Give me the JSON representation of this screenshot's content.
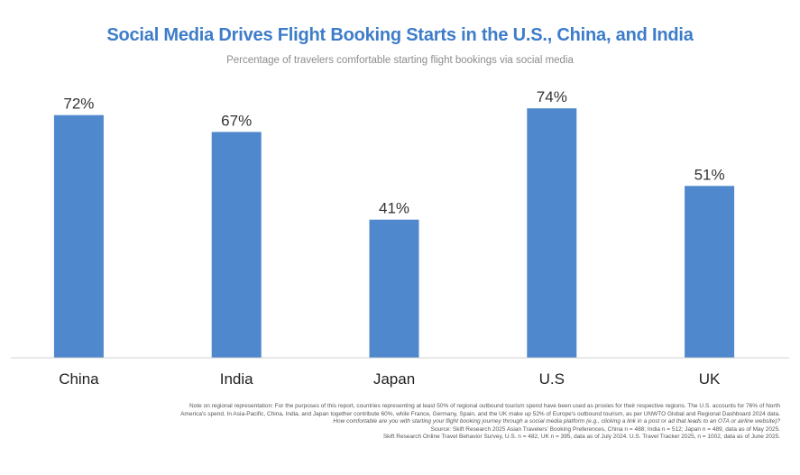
{
  "chart_data": {
    "type": "bar",
    "title": "Social Media Drives Flight Booking Starts in the U.S., China, and India",
    "subtitle": "Percentage of travelers comfortable starting flight bookings via social media",
    "categories": [
      "China",
      "India",
      "Japan",
      "U.S",
      "UK"
    ],
    "values": [
      72,
      67,
      41,
      74,
      51
    ],
    "data_labels": [
      "72%",
      "67%",
      "41%",
      "74%",
      "51%"
    ],
    "ylim": [
      0,
      100
    ],
    "grid": false,
    "legend": "none",
    "bar_color": "#4f88cc"
  },
  "notes": {
    "line1": "Note on regional representation: For the purposes of this report, countries representing at least 50% of regional outbound tourism spend have been used as proxies for their respective regions. The U.S. accounts for 76% of North",
    "line2": "America's spend. In Asia-Pacific, China, India, and Japan together contribute 60%, while France, Germany, Spain, and the UK make up 52% of Europe's outbound tourism, as per UNWTO Global and Regional Dashboard 2024 data.",
    "line3": "How comfortable are you with starting your flight booking journey through a social media platform (e.g., clicking a link in a post or ad that leads to an OTA or airline website)?",
    "line4": "Source: Skift Research 2025 Asian Travelers' Booking Preferences, China n = 488; India n = 512; Japan n = 489, data as of May 2025.",
    "line5": "Skift Research Online Travel Behavior Survey, U.S. n = 482, UK n = 395, data as of July 2024. U.S. Travel Tracker 2025, n = 1002, data as of June 2025."
  }
}
